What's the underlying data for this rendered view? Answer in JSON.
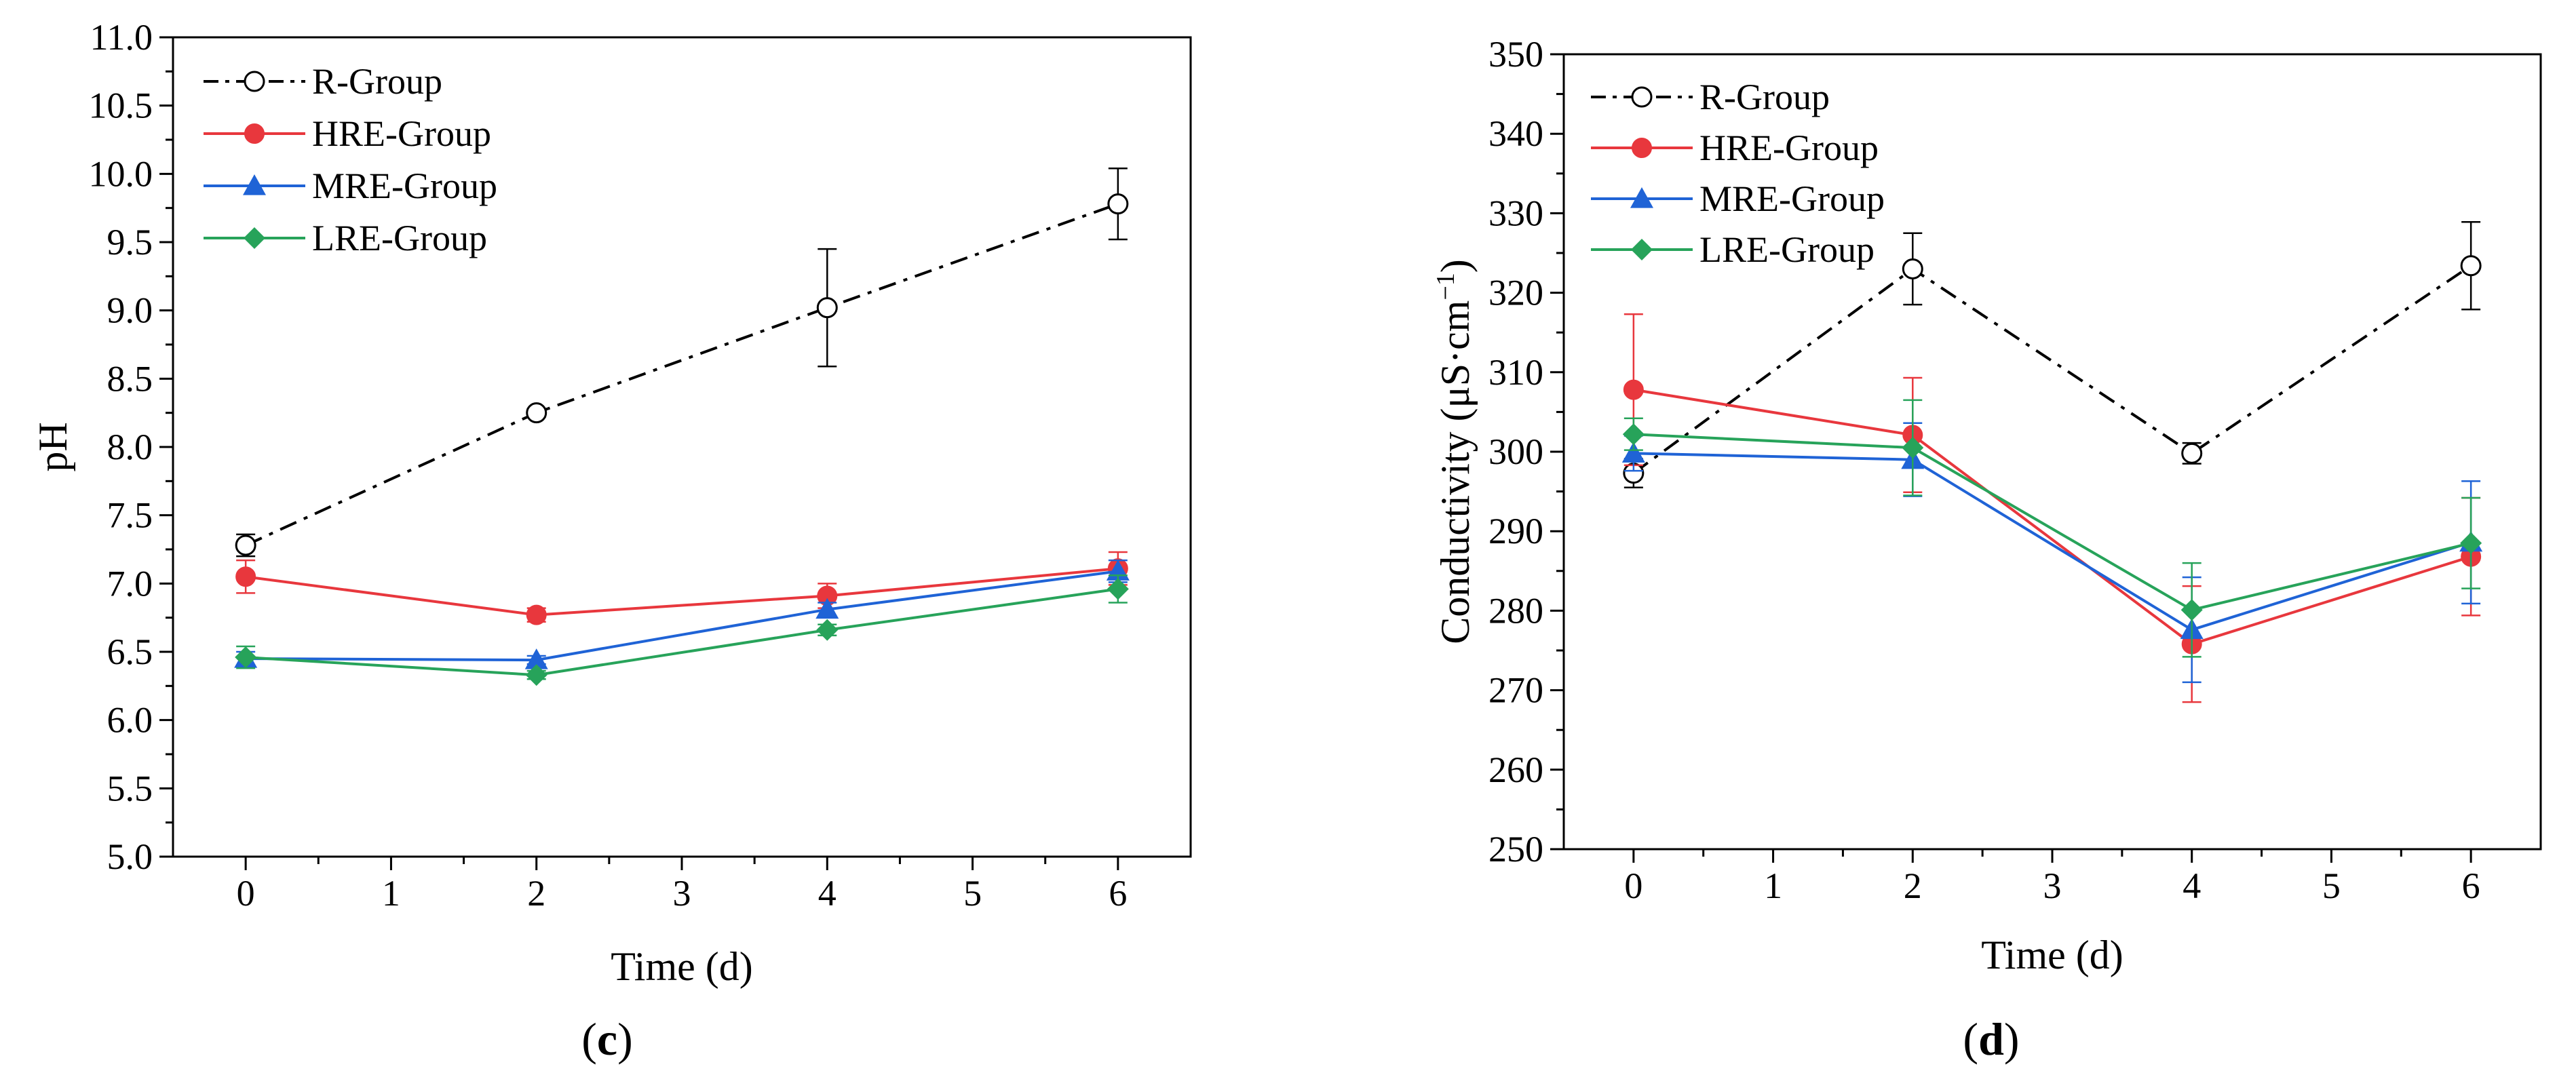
{
  "chart_data": [
    {
      "type": "line",
      "panel_label": "c",
      "title": "",
      "xlabel": "Time (d)",
      "ylabel": "pH",
      "xlim": [
        -0.5,
        6.5
      ],
      "ylim": [
        5.0,
        11.0
      ],
      "xticks": [
        0,
        1,
        2,
        3,
        4,
        5,
        6
      ],
      "xtick_labels": [
        "0",
        "1",
        "2",
        "3",
        "4",
        "5",
        "6"
      ],
      "yticks": [
        5.0,
        5.5,
        6.0,
        6.5,
        7.0,
        7.5,
        8.0,
        8.5,
        9.0,
        9.5,
        10.0,
        10.5,
        11.0
      ],
      "ytick_labels": [
        "5.0",
        "5.5",
        "6.0",
        "6.5",
        "7.0",
        "7.5",
        "8.0",
        "8.5",
        "9.0",
        "9.5",
        "10.0",
        "10.5",
        "11.0"
      ],
      "legend_position": "top-left",
      "x": [
        0,
        2,
        4,
        6
      ],
      "series": [
        {
          "name": "R-Group",
          "color": "#000000",
          "marker": "open-circle",
          "line_style": "dash-dot",
          "values": [
            7.28,
            8.25,
            9.02,
            9.78
          ],
          "errors": [
            0.08,
            0.03,
            0.43,
            0.26
          ]
        },
        {
          "name": "HRE-Group",
          "color": "#e8373d",
          "marker": "circle",
          "line_style": "solid",
          "values": [
            7.05,
            6.77,
            6.91,
            7.11
          ],
          "errors": [
            0.12,
            0.05,
            0.09,
            0.12
          ]
        },
        {
          "name": "MRE-Group",
          "color": "#1f63d6",
          "marker": "triangle",
          "line_style": "solid",
          "values": [
            6.45,
            6.44,
            6.81,
            7.09
          ],
          "errors": [
            0.05,
            0.03,
            0.05,
            0.08
          ]
        },
        {
          "name": "LRE-Group",
          "color": "#27a35a",
          "marker": "diamond",
          "line_style": "solid",
          "values": [
            6.46,
            6.33,
            6.66,
            6.96
          ],
          "errors": [
            0.08,
            0.03,
            0.04,
            0.1
          ]
        }
      ]
    },
    {
      "type": "line",
      "panel_label": "d",
      "title": "",
      "xlabel": "Time (d)",
      "ylabel": "Conductivity (μS·cm",
      "ylabel_superscript": "−1",
      "ylabel_suffix": ")",
      "xlim": [
        -0.5,
        6.5
      ],
      "ylim": [
        250,
        350
      ],
      "xticks": [
        0,
        1,
        2,
        3,
        4,
        5,
        6
      ],
      "xtick_labels": [
        "0",
        "1",
        "2",
        "3",
        "4",
        "5",
        "6"
      ],
      "yticks": [
        250,
        260,
        270,
        280,
        290,
        300,
        310,
        320,
        330,
        340,
        350
      ],
      "ytick_labels": [
        "250",
        "260",
        "270",
        "280",
        "290",
        "300",
        "310",
        "320",
        "330",
        "340",
        "350"
      ],
      "legend_position": "top-left",
      "x": [
        0,
        2,
        4,
        6
      ],
      "series": [
        {
          "name": "R-Group",
          "color": "#000000",
          "marker": "open-circle",
          "line_style": "dash-dot",
          "values": [
            297.3,
            323.0,
            299.8,
            323.4
          ],
          "errors": [
            1.8,
            4.5,
            1.3,
            5.5
          ]
        },
        {
          "name": "HRE-Group",
          "color": "#e8373d",
          "marker": "circle",
          "line_style": "solid",
          "values": [
            307.8,
            302.1,
            275.8,
            286.8
          ],
          "errors": [
            9.5,
            7.2,
            7.3,
            7.4
          ]
        },
        {
          "name": "MRE-Group",
          "color": "#1f63d6",
          "marker": "triangle",
          "line_style": "solid",
          "values": [
            299.8,
            299.0,
            277.6,
            288.6
          ],
          "errors": [
            2.2,
            4.6,
            6.6,
            7.7
          ]
        },
        {
          "name": "LRE-Group",
          "color": "#27a35a",
          "marker": "diamond",
          "line_style": "solid",
          "values": [
            302.2,
            300.5,
            280.1,
            288.5
          ],
          "errors": [
            2.0,
            6.0,
            5.9,
            5.7
          ]
        }
      ]
    }
  ]
}
